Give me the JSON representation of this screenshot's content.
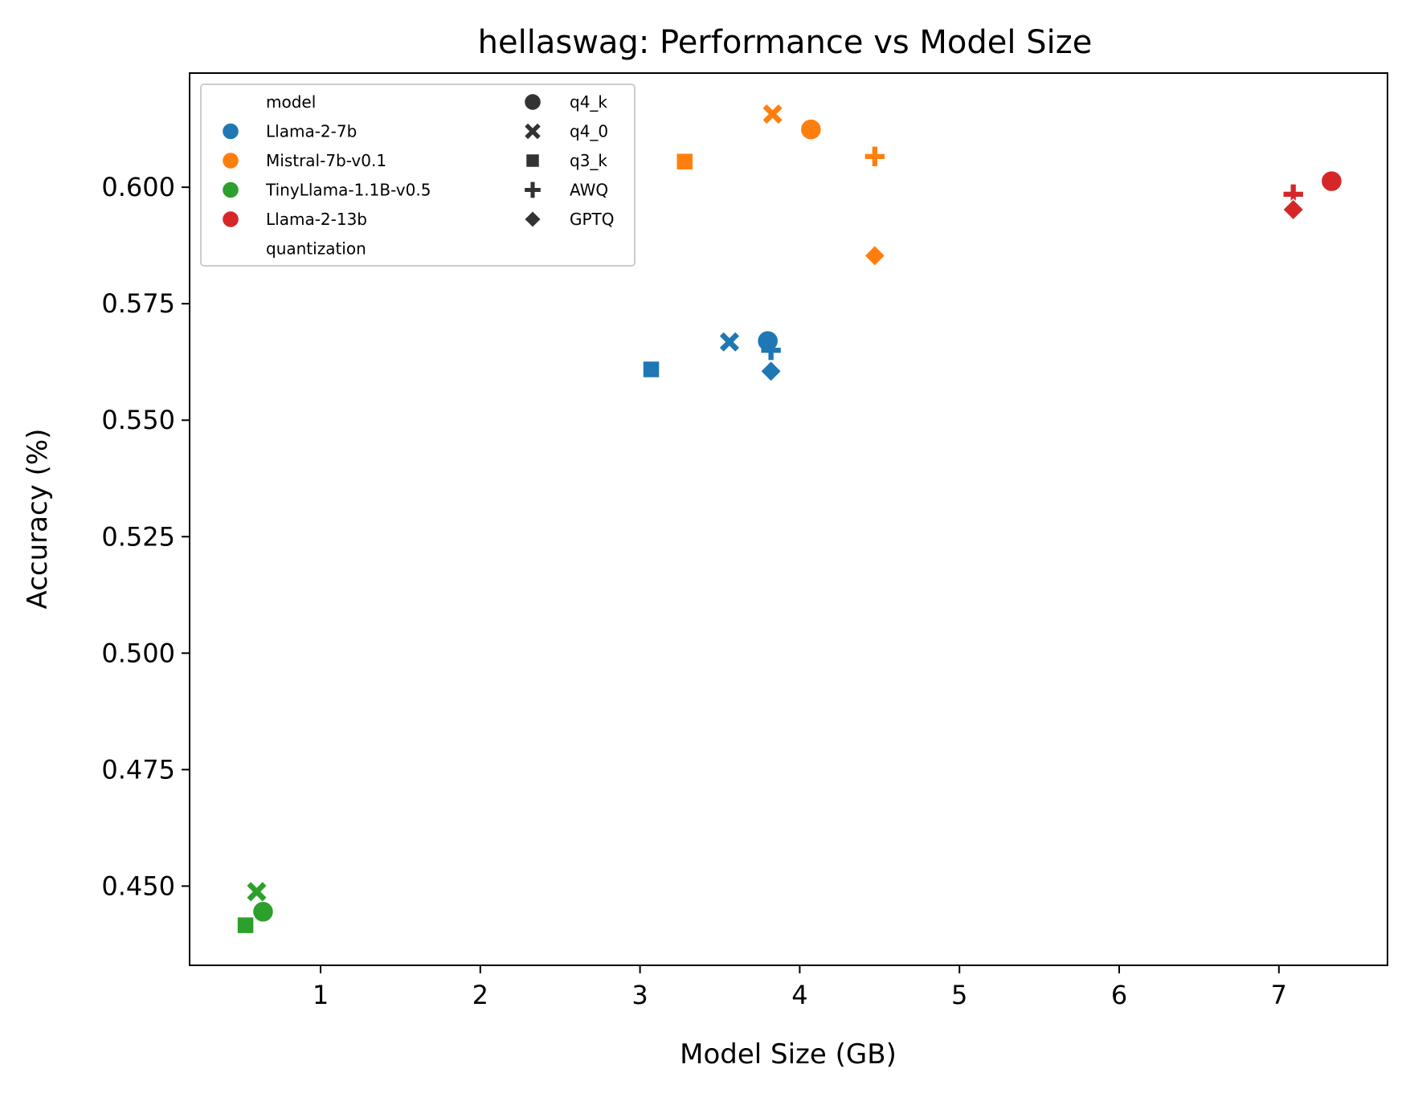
{
  "chart_data": {
    "type": "scatter",
    "title": "hellaswag: Performance vs Model Size",
    "xlabel": "Model Size (GB)",
    "ylabel": "Accuracy (%)",
    "xlim": [
      0.18,
      7.68
    ],
    "ylim": [
      0.433,
      0.6245
    ],
    "xticks": [
      1,
      2,
      3,
      4,
      5,
      6,
      7
    ],
    "yticks": [
      0.45,
      0.475,
      0.5,
      0.525,
      0.55,
      0.575,
      0.6
    ],
    "ytick_labels": [
      "0.450",
      "0.475",
      "0.500",
      "0.525",
      "0.550",
      "0.575",
      "0.600"
    ],
    "grid": false,
    "legend": {
      "placement": "top-left",
      "hue_title": "model",
      "style_title": "quantization",
      "models": [
        {
          "name": "Llama-2-7b",
          "color": "#1f77b4"
        },
        {
          "name": "Mistral-7b-v0.1",
          "color": "#ff7f0e"
        },
        {
          "name": "TinyLlama-1.1B-v0.5",
          "color": "#2ca02c"
        },
        {
          "name": "Llama-2-13b",
          "color": "#d62728"
        }
      ],
      "quantizations": [
        {
          "name": "q4_k",
          "marker": "circle"
        },
        {
          "name": "q4_0",
          "marker": "x"
        },
        {
          "name": "q3_k",
          "marker": "square"
        },
        {
          "name": "AWQ",
          "marker": "plus"
        },
        {
          "name": "GPTQ",
          "marker": "diamond"
        }
      ]
    },
    "points": [
      {
        "model": "Llama-2-7b",
        "quantization": "q4_k",
        "x": 3.8,
        "y": 0.567
      },
      {
        "model": "Llama-2-7b",
        "quantization": "q4_0",
        "x": 3.56,
        "y": 0.5668
      },
      {
        "model": "Llama-2-7b",
        "quantization": "q3_k",
        "x": 3.07,
        "y": 0.5609
      },
      {
        "model": "Llama-2-7b",
        "quantization": "AWQ",
        "x": 3.82,
        "y": 0.565
      },
      {
        "model": "Llama-2-7b",
        "quantization": "GPTQ",
        "x": 3.82,
        "y": 0.5605
      },
      {
        "model": "Mistral-7b-v0.1",
        "quantization": "q4_k",
        "x": 4.07,
        "y": 0.6124
      },
      {
        "model": "Mistral-7b-v0.1",
        "quantization": "q4_0",
        "x": 3.83,
        "y": 0.6157
      },
      {
        "model": "Mistral-7b-v0.1",
        "quantization": "q3_k",
        "x": 3.28,
        "y": 0.6055
      },
      {
        "model": "Mistral-7b-v0.1",
        "quantization": "AWQ",
        "x": 4.47,
        "y": 0.6066
      },
      {
        "model": "Mistral-7b-v0.1",
        "quantization": "GPTQ",
        "x": 4.47,
        "y": 0.5853
      },
      {
        "model": "TinyLlama-1.1B-v0.5",
        "quantization": "q4_k",
        "x": 0.64,
        "y": 0.4445
      },
      {
        "model": "TinyLlama-1.1B-v0.5",
        "quantization": "q4_0",
        "x": 0.6,
        "y": 0.4488
      },
      {
        "model": "TinyLlama-1.1B-v0.5",
        "quantization": "q3_k",
        "x": 0.53,
        "y": 0.4416
      },
      {
        "model": "Llama-2-13b",
        "quantization": "q4_k",
        "x": 7.33,
        "y": 0.6013
      },
      {
        "model": "Llama-2-13b",
        "quantization": "AWQ",
        "x": 7.09,
        "y": 0.5985
      },
      {
        "model": "Llama-2-13b",
        "quantization": "GPTQ",
        "x": 7.09,
        "y": 0.5952
      }
    ]
  }
}
